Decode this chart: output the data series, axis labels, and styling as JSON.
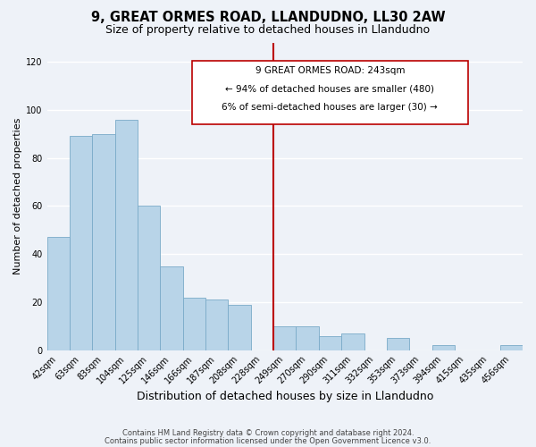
{
  "title": "9, GREAT ORMES ROAD, LLANDUDNO, LL30 2AW",
  "subtitle": "Size of property relative to detached houses in Llandudno",
  "xlabel": "Distribution of detached houses by size in Llandudno",
  "ylabel": "Number of detached properties",
  "bar_labels": [
    "42sqm",
    "63sqm",
    "83sqm",
    "104sqm",
    "125sqm",
    "146sqm",
    "166sqm",
    "187sqm",
    "208sqm",
    "228sqm",
    "249sqm",
    "270sqm",
    "290sqm",
    "311sqm",
    "332sqm",
    "353sqm",
    "373sqm",
    "394sqm",
    "415sqm",
    "435sqm",
    "456sqm"
  ],
  "bar_values": [
    47,
    89,
    90,
    96,
    60,
    35,
    22,
    21,
    19,
    0,
    10,
    10,
    6,
    7,
    0,
    5,
    0,
    2,
    0,
    0,
    2
  ],
  "bar_color": "#b8d4e8",
  "bar_edge_color": "#7aaac8",
  "vline_color": "#bb0000",
  "ylim": [
    0,
    128
  ],
  "yticks": [
    0,
    20,
    40,
    60,
    80,
    100,
    120
  ],
  "annotation_title": "9 GREAT ORMES ROAD: 243sqm",
  "annotation_line1": "← 94% of detached houses are smaller (480)",
  "annotation_line2": "6% of semi-detached houses are larger (30) →",
  "footer_line1": "Contains HM Land Registry data © Crown copyright and database right 2024.",
  "footer_line2": "Contains public sector information licensed under the Open Government Licence v3.0.",
  "background_color": "#eef2f8",
  "grid_color": "#ffffff",
  "title_fontsize": 10.5,
  "subtitle_fontsize": 9,
  "xlabel_fontsize": 9,
  "ylabel_fontsize": 8,
  "tick_fontsize": 7,
  "footer_fontsize": 6,
  "annot_fontsize": 7.5
}
